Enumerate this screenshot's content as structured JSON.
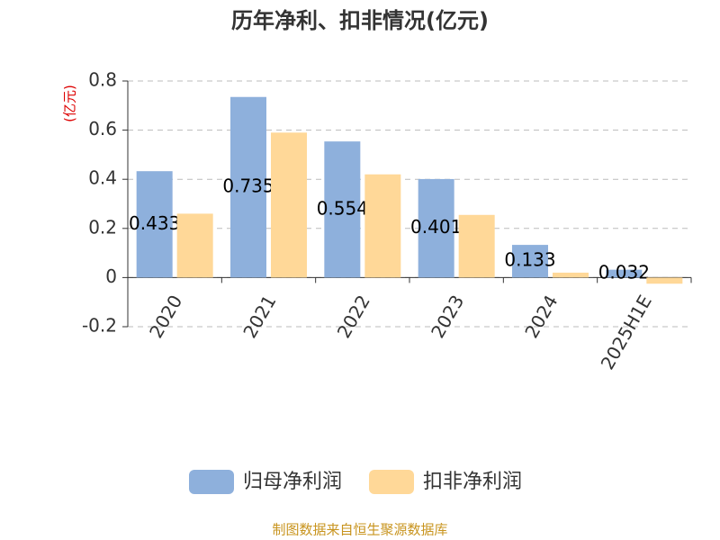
{
  "chart_data": {
    "type": "bar",
    "title": "历年净利、扣非情况(亿元)",
    "y_label": "(亿元)",
    "categories": [
      "2020",
      "2021",
      "2022",
      "2023",
      "2024",
      "2025H1E"
    ],
    "series": [
      {
        "name": "归母净利润",
        "color": "#8eb0dc",
        "values": [
          0.433,
          0.735,
          0.554,
          0.401,
          0.133,
          0.032
        ]
      },
      {
        "name": "扣非净利润",
        "color": "#ffd898",
        "values": [
          0.26,
          0.59,
          0.42,
          0.255,
          0.02,
          -0.025
        ]
      }
    ],
    "ylim": [
      -0.2,
      0.8
    ],
    "yticks": [
      -0.2,
      0,
      0.2,
      0.4,
      0.6,
      0.8
    ],
    "grid": true,
    "source": "制图数据来自恒生聚源数据库"
  }
}
